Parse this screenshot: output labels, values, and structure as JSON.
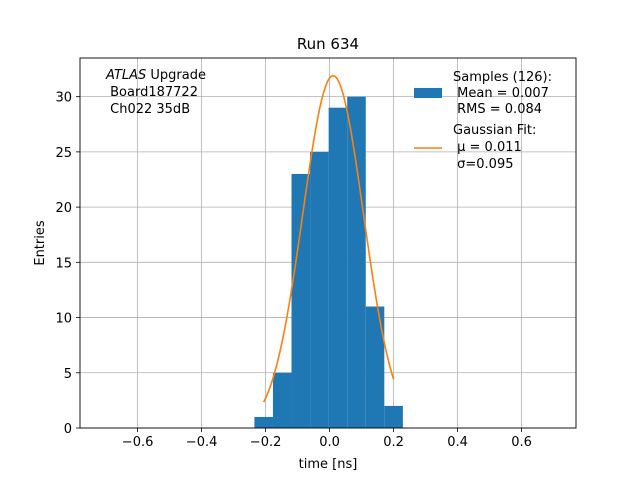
{
  "chart_data": {
    "type": "bar",
    "title": "Run 634",
    "xlabel": "time [ns]",
    "ylabel": "Entries",
    "xlim": [
      -0.78,
      0.77
    ],
    "ylim": [
      0,
      33.5
    ],
    "xticks": [
      -0.6,
      -0.4,
      -0.2,
      0.0,
      0.2,
      0.4,
      0.6
    ],
    "xtick_labels": [
      "−0.6",
      "−0.4",
      "−0.2",
      "0.0",
      "0.2",
      "0.4",
      "0.6"
    ],
    "yticks": [
      0,
      5,
      10,
      15,
      20,
      25,
      30
    ],
    "ytick_labels": [
      "0",
      "5",
      "10",
      "15",
      "20",
      "25",
      "30"
    ],
    "grid": true,
    "legend_position": "top-right",
    "annotation": {
      "line1_italic": "ATLAS",
      "line1_rest": " Upgrade",
      "line2": " Board187722",
      "line3": " Ch022 35dB"
    },
    "histogram": {
      "name": "Samples (126):",
      "stats": [
        " Mean = 0.007",
        " RMS = 0.084"
      ],
      "color": "#1f77b4",
      "bin_edges": [
        -0.235,
        -0.177,
        -0.119,
        -0.061,
        -0.003,
        0.055,
        0.113,
        0.171,
        0.229
      ],
      "counts": [
        1,
        5,
        23,
        25,
        29,
        30,
        11,
        2
      ]
    },
    "fit": {
      "name": "Gaussian Fit:",
      "mu_label": " μ = 0.011",
      "sigma_label": " σ=0.095",
      "color": "#ff7f0e",
      "amplitude": 31.9,
      "mu": 0.011,
      "sigma": 0.095,
      "x_range": [
        -0.206,
        0.2
      ]
    }
  }
}
